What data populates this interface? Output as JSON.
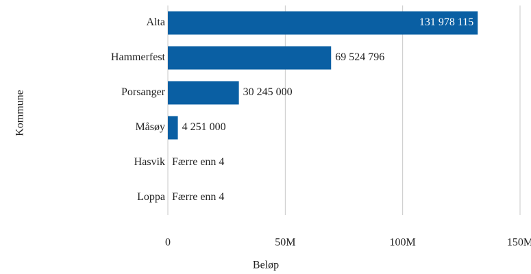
{
  "chart_data": {
    "type": "bar",
    "orientation": "horizontal",
    "categories": [
      "Alta",
      "Hammerfest",
      "Porsanger",
      "Måsøy",
      "Hasvik",
      "Loppa"
    ],
    "values": [
      131978115,
      69524796,
      30245000,
      4251000,
      null,
      null
    ],
    "value_labels": [
      "131 978 115",
      "69 524 796",
      "30 245 000",
      "4 251 000",
      "Færre enn 4",
      "Færre enn 4"
    ],
    "color": "#0a5fa3",
    "xlim": [
      0,
      150000000
    ],
    "xticks": [
      0,
      {
        "value": 50000000,
        "label": "50M"
      },
      {
        "value": 100000000,
        "label": "100M"
      },
      {
        "value": 150000000,
        "label": "150M"
      }
    ],
    "x_label": "Beløp",
    "y_label": "Kommune",
    "grid": true
  }
}
